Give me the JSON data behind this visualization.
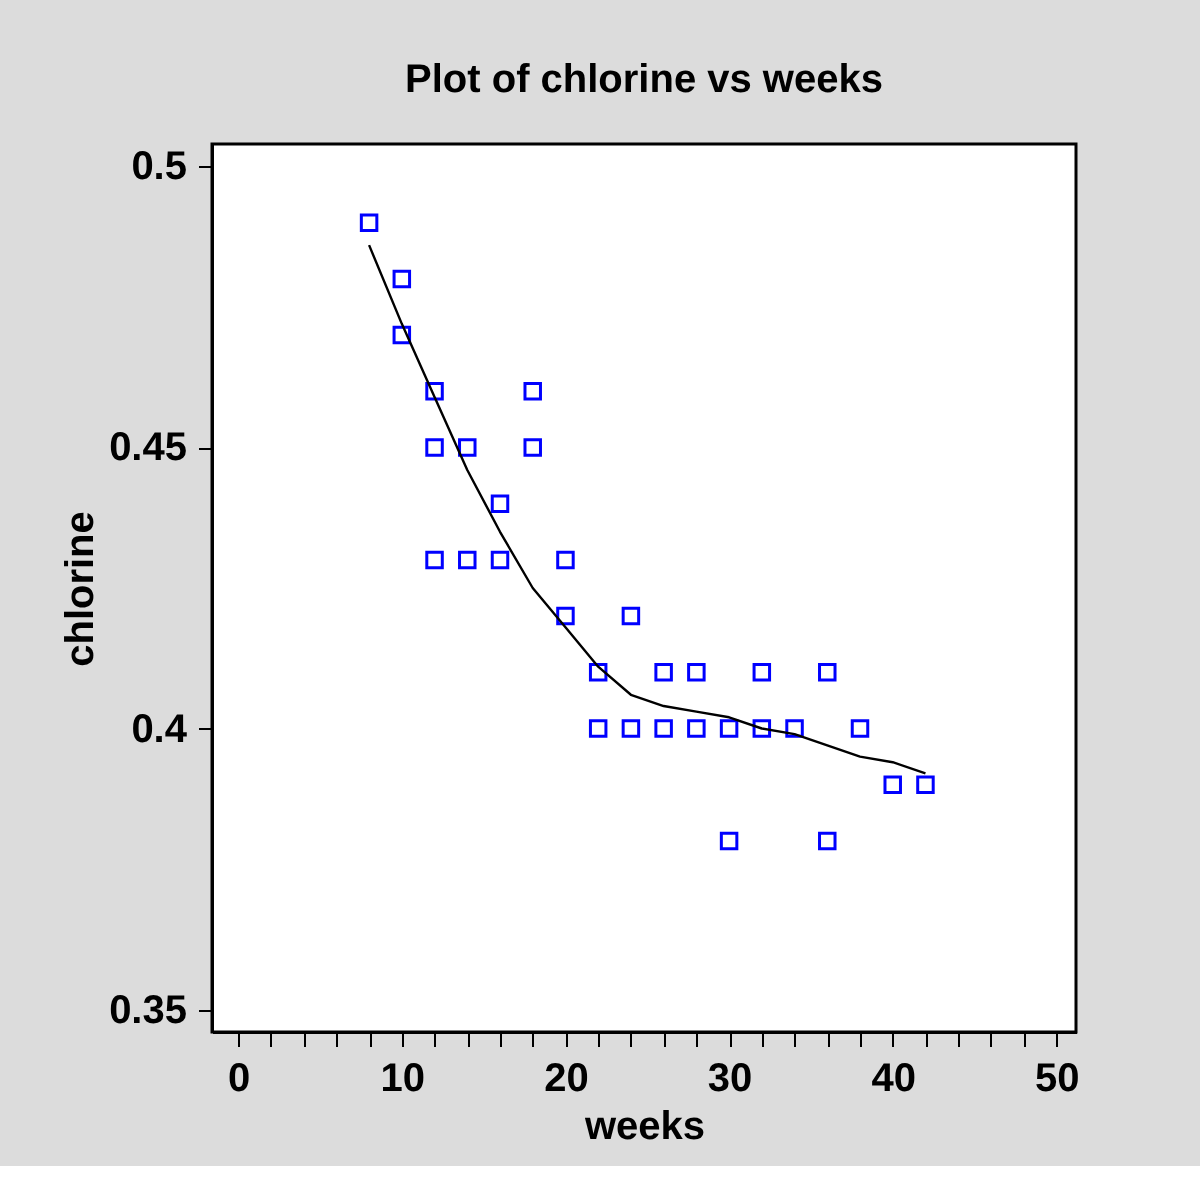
{
  "chart_data": {
    "type": "scatter",
    "title": "Plot of chlorine vs weeks",
    "xlabel": "weeks",
    "ylabel": "chlorine",
    "series": [
      {
        "color": "#0000ff",
        "marker": "square",
        "x": [
          8,
          10,
          10,
          12,
          12,
          12,
          14,
          14,
          16,
          16,
          18,
          18,
          20,
          20,
          22,
          22,
          24,
          24,
          26,
          26,
          28,
          28,
          30,
          30,
          32,
          32,
          34,
          36,
          36,
          38,
          40,
          42
        ],
        "values": [
          0.49,
          0.48,
          0.47,
          0.46,
          0.45,
          0.43,
          0.45,
          0.43,
          0.44,
          0.43,
          0.46,
          0.45,
          0.43,
          0.42,
          0.41,
          0.4,
          0.42,
          0.4,
          0.41,
          0.4,
          0.41,
          0.4,
          0.4,
          0.38,
          0.41,
          0.4,
          0.4,
          0.41,
          0.38,
          0.4,
          0.39,
          0.39
        ]
      },
      {
        "type": "line",
        "color": "#000000",
        "marker": "none",
        "line_style": "solid",
        "x": [
          8,
          10,
          12,
          14,
          16,
          18,
          20,
          22,
          24,
          26,
          28,
          30,
          32,
          34,
          36,
          38,
          40,
          42
        ],
        "values": [
          0.486,
          0.472,
          0.459,
          0.446,
          0.435,
          0.425,
          0.418,
          0.411,
          0.406,
          0.404,
          0.403,
          0.402,
          0.4,
          0.399,
          0.397,
          0.395,
          0.394,
          0.392
        ]
      }
    ],
    "xlim": [
      -1.6,
      51.2
    ],
    "ylim": [
      0.346,
      0.504
    ],
    "xticks": [
      0,
      {
        "value": 2,
        "label": null
      },
      {
        "value": 4,
        "label": null
      },
      {
        "value": 6,
        "label": null
      },
      {
        "value": 8,
        "label": null
      },
      10,
      {
        "value": 12,
        "label": null
      },
      {
        "value": 14,
        "label": null
      },
      {
        "value": 16,
        "label": null
      },
      {
        "value": 18,
        "label": null
      },
      20,
      {
        "value": 22,
        "label": null
      },
      {
        "value": 24,
        "label": null
      },
      {
        "value": 26,
        "label": null
      },
      {
        "value": 28,
        "label": null
      },
      30,
      {
        "value": 32,
        "label": null
      },
      {
        "value": 34,
        "label": null
      },
      {
        "value": 36,
        "label": null
      },
      {
        "value": 38,
        "label": null
      },
      40,
      {
        "value": 42,
        "label": null
      },
      {
        "value": 44,
        "label": null
      },
      {
        "value": 46,
        "label": null
      },
      {
        "value": 48,
        "label": null
      },
      50
    ],
    "yticks": [
      0.35,
      0.4,
      0.45,
      0.5
    ],
    "grid": false
  }
}
